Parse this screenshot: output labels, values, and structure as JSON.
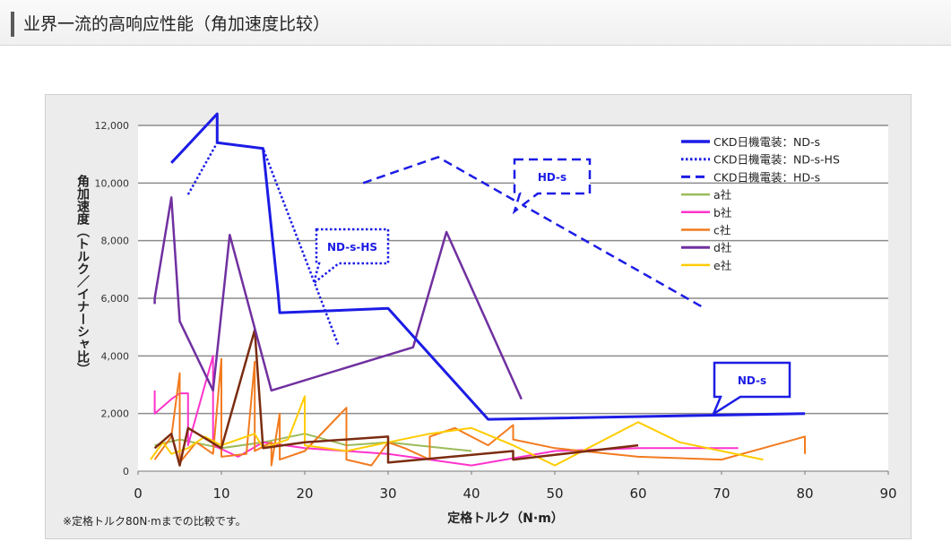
{
  "header": {
    "title": "业界一流的高响应性能（角加速度比较）"
  },
  "chart_data": {
    "type": "line",
    "ylabel": "角加速度（トルク／イナーシャ比）",
    "xlabel": "定格トルク（N·m）",
    "xlim": [
      0,
      90
    ],
    "ylim": [
      0,
      12000
    ],
    "x_ticks": [
      "0",
      "10",
      "20",
      "30",
      "40",
      "50",
      "60",
      "70",
      "80",
      "90"
    ],
    "y_ticks": [
      "0",
      "2,000",
      "4,000",
      "6,000",
      "8,000",
      "10,000",
      "12,000"
    ],
    "grid": true,
    "legend_position": "top-right",
    "footnote": "※定格トルク80N·mまでの比較です。",
    "series": [
      {
        "name": "CKD日機電装：ND-s",
        "color": "#1c1ce6",
        "style": "solid",
        "width": 3,
        "points": [
          [
            4,
            10700
          ],
          [
            9.5,
            12400
          ],
          [
            9.5,
            11400
          ],
          [
            15,
            11200
          ],
          [
            16.8,
            6200
          ],
          [
            17,
            5500
          ],
          [
            30,
            5650
          ],
          [
            42,
            1800
          ],
          [
            80,
            2000
          ]
        ]
      },
      {
        "name": "CKD日機電装：ND-s-HS",
        "color": "#1c1ce6",
        "style": "dotted",
        "width": 2.5,
        "points": [
          [
            6,
            9600
          ],
          [
            9.5,
            11400
          ],
          [
            15,
            11200
          ],
          [
            24,
            4400
          ]
        ]
      },
      {
        "name": "CKD日機電装：HD-s",
        "color": "#1c1ce6",
        "style": "dashed",
        "width": 2.5,
        "points": [
          [
            27,
            10000
          ],
          [
            36,
            10900
          ],
          [
            68,
            5650
          ]
        ]
      },
      {
        "name": "a社",
        "color": "#9bbb59",
        "style": "solid",
        "width": 2,
        "points": [
          [
            2,
            900
          ],
          [
            5,
            1100
          ],
          [
            10,
            800
          ],
          [
            15,
            1000
          ],
          [
            20,
            1300
          ],
          [
            25,
            900
          ],
          [
            30,
            1000
          ],
          [
            40,
            700
          ]
        ]
      },
      {
        "name": "b社",
        "color": "#ff33cc",
        "style": "solid",
        "width": 2,
        "points": [
          [
            2,
            2800
          ],
          [
            2,
            2000
          ],
          [
            4,
            2500
          ],
          [
            5,
            2700
          ],
          [
            6,
            2700
          ],
          [
            6,
            900
          ],
          [
            9,
            4000
          ],
          [
            9,
            900
          ],
          [
            12,
            500
          ],
          [
            15,
            1000
          ],
          [
            20,
            800
          ],
          [
            30,
            600
          ],
          [
            40,
            200
          ],
          [
            50,
            700
          ],
          [
            60,
            800
          ],
          [
            70,
            800
          ],
          [
            72,
            800
          ]
        ]
      },
      {
        "name": "c社",
        "color": "#f27b1f",
        "style": "solid",
        "width": 2,
        "points": [
          [
            2,
            400
          ],
          [
            4,
            1200
          ],
          [
            5,
            3400
          ],
          [
            5,
            300
          ],
          [
            7,
            1000
          ],
          [
            9,
            600
          ],
          [
            10,
            3900
          ],
          [
            10,
            500
          ],
          [
            13,
            600
          ],
          [
            14,
            3800
          ],
          [
            14,
            700
          ],
          [
            16,
            1000
          ],
          [
            16,
            200
          ],
          [
            17,
            2000
          ],
          [
            17,
            400
          ],
          [
            20,
            700
          ],
          [
            25,
            2200
          ],
          [
            25,
            400
          ],
          [
            28,
            200
          ],
          [
            30,
            1000
          ],
          [
            32,
            800
          ],
          [
            35,
            400
          ],
          [
            35,
            1200
          ],
          [
            38,
            1500
          ],
          [
            42,
            900
          ],
          [
            45,
            1600
          ],
          [
            45,
            1100
          ],
          [
            50,
            800
          ],
          [
            60,
            500
          ],
          [
            70,
            400
          ],
          [
            80,
            1200
          ],
          [
            80,
            600
          ]
        ]
      },
      {
        "name": "d社",
        "color": "#7030a0",
        "style": "solid",
        "width": 2.5,
        "points": [
          [
            2,
            5800
          ],
          [
            2,
            6000
          ],
          [
            4,
            9500
          ],
          [
            5,
            5200
          ],
          [
            9,
            2800
          ],
          [
            11,
            8200
          ],
          [
            16,
            2800
          ],
          [
            33,
            4300
          ],
          [
            37,
            8300
          ],
          [
            46,
            2500
          ]
        ]
      },
      {
        "name": "e社",
        "color": "#ffcc00",
        "style": "solid",
        "width": 2,
        "points": [
          [
            1.5,
            400
          ],
          [
            3,
            1000
          ],
          [
            4,
            600
          ],
          [
            6,
            800
          ],
          [
            8,
            1200
          ],
          [
            10,
            900
          ],
          [
            14,
            1300
          ],
          [
            15,
            800
          ],
          [
            18,
            1100
          ],
          [
            20,
            2600
          ],
          [
            20,
            900
          ],
          [
            25,
            700
          ],
          [
            30,
            1000
          ],
          [
            35,
            1300
          ],
          [
            40,
            1500
          ],
          [
            45,
            900
          ],
          [
            50,
            200
          ],
          [
            60,
            1700
          ],
          [
            65,
            1000
          ],
          [
            70,
            700
          ],
          [
            75,
            400
          ]
        ]
      },
      {
        "name": "",
        "color": "#7b2c10",
        "style": "solid",
        "width": 2.5,
        "points": [
          [
            2,
            800
          ],
          [
            4,
            1300
          ],
          [
            5,
            200
          ],
          [
            6,
            1500
          ],
          [
            10,
            800
          ],
          [
            14,
            4900
          ],
          [
            15,
            800
          ],
          [
            20,
            1000
          ],
          [
            30,
            1200
          ],
          [
            30,
            300
          ],
          [
            45,
            700
          ],
          [
            45,
            400
          ],
          [
            60,
            900
          ]
        ]
      }
    ],
    "callouts": [
      {
        "text": "HD-s",
        "style": "dashed",
        "x": 50,
        "y": 11000
      },
      {
        "text": "ND-s-HS",
        "style": "dotted",
        "x": 30,
        "y": 8300
      },
      {
        "text": "ND-s",
        "style": "solid",
        "x": 80,
        "y": 3400
      }
    ]
  }
}
